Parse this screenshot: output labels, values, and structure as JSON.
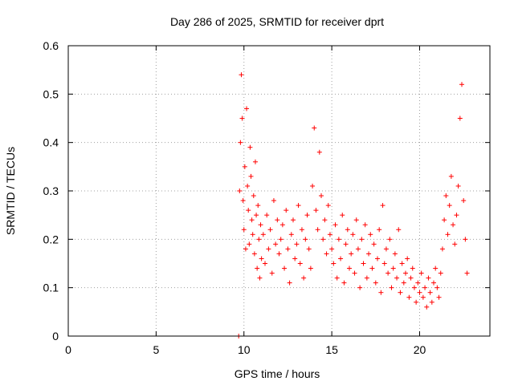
{
  "chart_data": {
    "type": "scatter",
    "title": "Day 286 of 2025, SRMTID for receiver dprt",
    "xlabel": "GPS time / hours",
    "ylabel": "SRMTID / TECUs",
    "xlim": [
      0,
      24
    ],
    "ylim": [
      0,
      0.6
    ],
    "xticks": [
      0,
      5,
      10,
      15,
      20
    ],
    "xtick_labels": [
      "0",
      "5",
      "10",
      "15",
      "20"
    ],
    "yticks": [
      0,
      0.1,
      0.2,
      0.3,
      0.4,
      0.5,
      0.6
    ],
    "ytick_labels": [
      "0",
      "0.1",
      "0.2",
      "0.3",
      "0.4",
      "0.5",
      "0.6"
    ],
    "grid": true,
    "marker": "+",
    "color": "#ff0000",
    "series": [
      {
        "name": "SRMTID",
        "x": [
          9.7,
          9.75,
          9.8,
          9.85,
          9.9,
          9.95,
          10.0,
          10.05,
          10.1,
          10.15,
          10.2,
          10.25,
          10.3,
          10.35,
          10.4,
          10.45,
          10.5,
          10.55,
          10.6,
          10.65,
          10.7,
          10.75,
          10.8,
          10.85,
          10.9,
          10.95,
          11.0,
          11.1,
          11.2,
          11.3,
          11.4,
          11.5,
          11.6,
          11.7,
          11.8,
          11.9,
          12.0,
          12.1,
          12.2,
          12.3,
          12.4,
          12.5,
          12.6,
          12.7,
          12.8,
          12.9,
          13.0,
          13.1,
          13.2,
          13.3,
          13.4,
          13.5,
          13.6,
          13.7,
          13.8,
          13.9,
          14.0,
          14.1,
          14.2,
          14.3,
          14.4,
          14.5,
          14.6,
          14.7,
          14.8,
          14.9,
          15.0,
          15.1,
          15.2,
          15.3,
          15.4,
          15.5,
          15.6,
          15.7,
          15.8,
          15.9,
          16.0,
          16.1,
          16.2,
          16.3,
          16.4,
          16.5,
          16.6,
          16.7,
          16.8,
          16.9,
          17.0,
          17.1,
          17.2,
          17.3,
          17.4,
          17.5,
          17.6,
          17.7,
          17.8,
          17.9,
          18.0,
          18.1,
          18.2,
          18.3,
          18.4,
          18.5,
          18.6,
          18.7,
          18.8,
          18.9,
          19.0,
          19.1,
          19.2,
          19.3,
          19.4,
          19.5,
          19.6,
          19.7,
          19.8,
          19.9,
          20.0,
          20.1,
          20.2,
          20.3,
          20.4,
          20.5,
          20.6,
          20.7,
          20.8,
          20.9,
          21.0,
          21.1,
          21.2,
          21.3,
          21.4,
          21.5,
          21.6,
          21.7,
          21.8,
          21.9,
          22.0,
          22.1,
          22.2,
          22.3,
          22.4,
          22.5,
          22.6,
          22.7
        ],
        "y": [
          0.0,
          0.3,
          0.4,
          0.54,
          0.45,
          0.28,
          0.22,
          0.35,
          0.18,
          0.47,
          0.31,
          0.26,
          0.19,
          0.39,
          0.33,
          0.24,
          0.21,
          0.29,
          0.17,
          0.36,
          0.25,
          0.14,
          0.27,
          0.2,
          0.12,
          0.23,
          0.16,
          0.21,
          0.15,
          0.25,
          0.18,
          0.22,
          0.13,
          0.28,
          0.19,
          0.24,
          0.17,
          0.2,
          0.23,
          0.14,
          0.26,
          0.18,
          0.11,
          0.21,
          0.24,
          0.16,
          0.19,
          0.27,
          0.15,
          0.22,
          0.12,
          0.2,
          0.25,
          0.18,
          0.14,
          0.31,
          0.43,
          0.26,
          0.22,
          0.38,
          0.29,
          0.2,
          0.24,
          0.17,
          0.27,
          0.21,
          0.18,
          0.15,
          0.23,
          0.12,
          0.2,
          0.16,
          0.25,
          0.11,
          0.19,
          0.22,
          0.14,
          0.17,
          0.21,
          0.13,
          0.24,
          0.18,
          0.1,
          0.2,
          0.15,
          0.23,
          0.12,
          0.17,
          0.21,
          0.14,
          0.19,
          0.11,
          0.16,
          0.22,
          0.09,
          0.27,
          0.15,
          0.18,
          0.13,
          0.2,
          0.1,
          0.14,
          0.17,
          0.12,
          0.22,
          0.09,
          0.15,
          0.11,
          0.13,
          0.16,
          0.08,
          0.12,
          0.14,
          0.1,
          0.07,
          0.11,
          0.09,
          0.13,
          0.08,
          0.1,
          0.06,
          0.12,
          0.09,
          0.07,
          0.11,
          0.14,
          0.1,
          0.08,
          0.13,
          0.18,
          0.24,
          0.29,
          0.21,
          0.27,
          0.33,
          0.23,
          0.19,
          0.25,
          0.31,
          0.45,
          0.52,
          0.28,
          0.2,
          0.13
        ]
      }
    ]
  }
}
